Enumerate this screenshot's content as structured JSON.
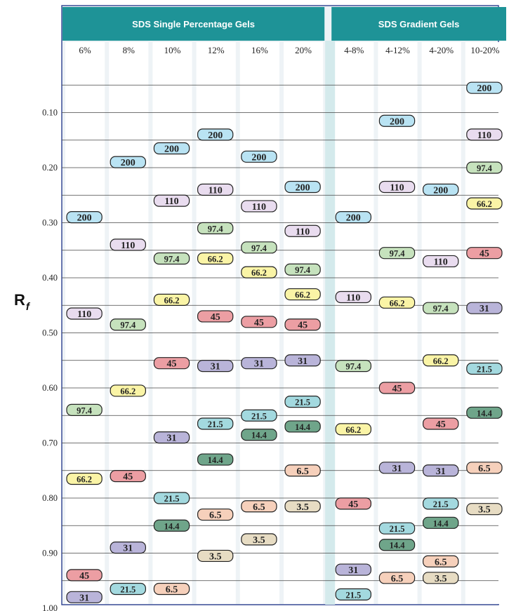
{
  "chart_data": {
    "type": "scatter",
    "title": "",
    "ylabel_main": "R",
    "ylabel_sub": "f",
    "ylim": [
      0.0,
      1.0
    ],
    "yticks": [
      0.1,
      0.2,
      0.3,
      0.4,
      0.5,
      0.6,
      0.7,
      0.8,
      0.9,
      1.0
    ],
    "ytick_labels": [
      "0.10",
      "0.20",
      "0.30",
      "0.40",
      "0.50",
      "0.60",
      "0.70",
      "0.80",
      "0.90",
      "1.00"
    ],
    "groups": [
      {
        "label": "SDS Single Percentage Gels",
        "columns": [
          "6%",
          "8%",
          "10%",
          "12%",
          "16%",
          "20%"
        ]
      },
      {
        "label": "SDS Gradient Gels",
        "columns": [
          "4-8%",
          "4-12%",
          "4-20%",
          "10-20%"
        ]
      }
    ],
    "marker_colors": {
      "200": "#b9e3f3",
      "110": "#e9dcef",
      "97.4": "#c6e2bd",
      "66.2": "#faf4a6",
      "45": "#ec9ea3",
      "31": "#b9b4d9",
      "21.5": "#a3d9df",
      "14.4": "#6fa58a",
      "6.5": "#f6d0bb",
      "3.5": "#e7dcc3"
    },
    "series": [
      {
        "name": "6%",
        "points": [
          [
            "200",
            0.29
          ],
          [
            "110",
            0.465
          ],
          [
            "97.4",
            0.64
          ],
          [
            "66.2",
            0.765
          ],
          [
            "45",
            0.94
          ],
          [
            "31",
            0.98
          ]
        ]
      },
      {
        "name": "8%",
        "points": [
          [
            "200",
            0.19
          ],
          [
            "110",
            0.34
          ],
          [
            "97.4",
            0.485
          ],
          [
            "66.2",
            0.605
          ],
          [
            "45",
            0.76
          ],
          [
            "31",
            0.89
          ],
          [
            "21.5",
            0.965
          ]
        ]
      },
      {
        "name": "10%",
        "points": [
          [
            "200",
            0.165
          ],
          [
            "110",
            0.26
          ],
          [
            "97.4",
            0.365
          ],
          [
            "66.2",
            0.44
          ],
          [
            "45",
            0.555
          ],
          [
            "31",
            0.69
          ],
          [
            "21.5",
            0.8
          ],
          [
            "14.4",
            0.85
          ],
          [
            "6.5",
            0.965
          ]
        ]
      },
      {
        "name": "12%",
        "points": [
          [
            "200",
            0.14
          ],
          [
            "110",
            0.24
          ],
          [
            "97.4",
            0.31
          ],
          [
            "66.2",
            0.365
          ],
          [
            "45",
            0.47
          ],
          [
            "31",
            0.56
          ],
          [
            "21.5",
            0.665
          ],
          [
            "14.4",
            0.73
          ],
          [
            "6.5",
            0.83
          ],
          [
            "3.5",
            0.905
          ]
        ]
      },
      {
        "name": "16%",
        "points": [
          [
            "200",
            0.18
          ],
          [
            "110",
            0.27
          ],
          [
            "97.4",
            0.345
          ],
          [
            "66.2",
            0.39
          ],
          [
            "45",
            0.48
          ],
          [
            "31",
            0.555
          ],
          [
            "21.5",
            0.65
          ],
          [
            "14.4",
            0.685
          ],
          [
            "6.5",
            0.815
          ],
          [
            "3.5",
            0.875
          ]
        ]
      },
      {
        "name": "20%",
        "points": [
          [
            "200",
            0.235
          ],
          [
            "110",
            0.315
          ],
          [
            "97.4",
            0.385
          ],
          [
            "66.2",
            0.43
          ],
          [
            "45",
            0.485
          ],
          [
            "31",
            0.55
          ],
          [
            "21.5",
            0.625
          ],
          [
            "14.4",
            0.67
          ],
          [
            "6.5",
            0.75
          ],
          [
            "3.5",
            0.815
          ]
        ]
      },
      {
        "name": "4-8%",
        "points": [
          [
            "200",
            0.29
          ],
          [
            "110",
            0.435
          ],
          [
            "97.4",
            0.56
          ],
          [
            "66.2",
            0.675
          ],
          [
            "45",
            0.81
          ],
          [
            "31",
            0.93
          ],
          [
            "21.5",
            0.975
          ]
        ]
      },
      {
        "name": "4-12%",
        "points": [
          [
            "200",
            0.115
          ],
          [
            "110",
            0.235
          ],
          [
            "97.4",
            0.355
          ],
          [
            "66.2",
            0.445
          ],
          [
            "45",
            0.6
          ],
          [
            "31",
            0.745
          ],
          [
            "21.5",
            0.855
          ],
          [
            "14.4",
            0.885
          ],
          [
            "6.5",
            0.945
          ]
        ]
      },
      {
        "name": "4-20%",
        "points": [
          [
            "200",
            0.24
          ],
          [
            "110",
            0.37
          ],
          [
            "97.4",
            0.455
          ],
          [
            "66.2",
            0.55
          ],
          [
            "45",
            0.665
          ],
          [
            "31",
            0.75
          ],
          [
            "21.5",
            0.81
          ],
          [
            "14.4",
            0.845
          ],
          [
            "6.5",
            0.915
          ],
          [
            "3.5",
            0.945
          ]
        ]
      },
      {
        "name": "10-20%",
        "points": [
          [
            "200",
            0.055
          ],
          [
            "110",
            0.14
          ],
          [
            "97.4",
            0.2
          ],
          [
            "66.2",
            0.265
          ],
          [
            "45",
            0.355
          ],
          [
            "31",
            0.455
          ],
          [
            "21.5",
            0.565
          ],
          [
            "14.4",
            0.645
          ],
          [
            "6.5",
            0.745
          ],
          [
            "3.5",
            0.82
          ]
        ]
      }
    ]
  }
}
